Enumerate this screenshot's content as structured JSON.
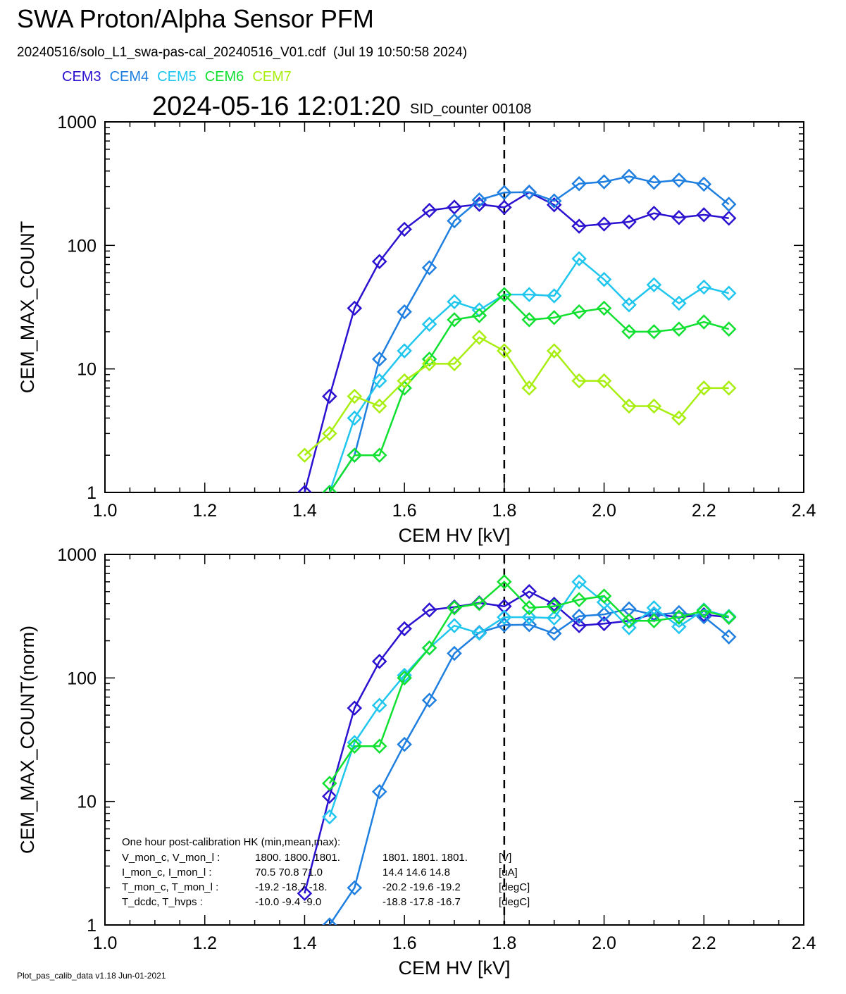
{
  "header": {
    "title": "SWA Proton/Alpha Sensor PFM",
    "subtitle": "20240516/solo_L1_swa-pas-cal_20240516_V01.cdf  (Jul 19 10:50:58 2024)",
    "timestamp": "2024-05-16 12:01:20",
    "sid_counter": "SID_counter 00108"
  },
  "footer": "Plot_pas_calib_data v1.18 Jun-01-2021",
  "hk_table": {
    "title": "One hour post-calibration HK (min,mean,max):",
    "rows": [
      {
        "label": "V_mon_c, V_mon_l :",
        "vals_c": "1800.  1800.  1801.",
        "vals_l": "1801.  1801.  1801.",
        "unit": "[V]"
      },
      {
        "label": "I_mon_c,  I_mon_l :",
        "vals_c": "70.5   70.8   71.0",
        "vals_l": "14.4   14.6   14.8",
        "unit": "[uA]"
      },
      {
        "label": "T_mon_c, T_mon_l :",
        "vals_c": "-19.2  -18.7  -18.",
        "vals_l": "-20.2  -19.6  -19.2",
        "unit": "[degC]"
      },
      {
        "label": "T_dcdc,    T_hvps :",
        "vals_c": "-10.0   -9.4   -9.0",
        "vals_l": "-18.8  -17.8  -16.7",
        "unit": "[degC]"
      }
    ]
  },
  "chart_data": [
    {
      "type": "line",
      "ylabel": "CEM_MAX_COUNT",
      "xlabel": "CEM HV [kV]",
      "xlim": [
        1.0,
        2.4
      ],
      "ylim": [
        1,
        1000
      ],
      "yscale": "log",
      "xticks": [
        "1.0",
        "1.2",
        "1.4",
        "1.6",
        "1.8",
        "2.0",
        "2.2",
        "2.4"
      ],
      "yticks": [
        "1",
        "10",
        "100",
        "1000"
      ],
      "vline": 1.8,
      "series": [
        {
          "name": "CEM3",
          "color": "#2b12d0",
          "x": [
            1.4,
            1.45,
            1.5,
            1.55,
            1.6,
            1.65,
            1.7,
            1.75,
            1.8,
            1.85,
            1.9,
            1.95,
            2.0,
            2.05,
            2.1,
            2.15,
            2.2,
            2.25
          ],
          "values": [
            1,
            6,
            31,
            74,
            135,
            192,
            204,
            215,
            203,
            269,
            213,
            143,
            149,
            155,
            182,
            168,
            177,
            166
          ]
        },
        {
          "name": "CEM4",
          "color": "#1e7fe0",
          "x": [
            1.45,
            1.5,
            1.55,
            1.6,
            1.65,
            1.7,
            1.75,
            1.8,
            1.85,
            1.9,
            1.95,
            2.0,
            2.05,
            2.1,
            2.15,
            2.2,
            2.25
          ],
          "values": [
            1,
            2,
            12,
            29,
            66,
            158,
            233,
            268,
            270,
            229,
            316,
            327,
            362,
            324,
            338,
            313,
            215
          ]
        },
        {
          "name": "CEM5",
          "color": "#20c6ee",
          "x": [
            1.45,
            1.5,
            1.55,
            1.6,
            1.65,
            1.7,
            1.75,
            1.8,
            1.85,
            1.9,
            1.95,
            2.0,
            2.05,
            2.1,
            2.15,
            2.2,
            2.25
          ],
          "values": [
            1,
            4,
            8,
            14,
            23,
            35,
            30,
            40,
            40,
            39,
            78,
            53,
            33,
            48,
            34,
            46,
            41
          ]
        },
        {
          "name": "CEM6",
          "color": "#10e030",
          "x": [
            1.45,
            1.5,
            1.55,
            1.6,
            1.65,
            1.7,
            1.75,
            1.8,
            1.85,
            1.9,
            1.95,
            2.0,
            2.05,
            2.1,
            2.15,
            2.2,
            2.25
          ],
          "values": [
            1,
            2,
            2,
            7,
            12,
            25,
            27,
            40,
            25,
            26,
            29,
            31,
            20,
            20,
            21,
            24,
            21
          ]
        },
        {
          "name": "CEM7",
          "color": "#a8ee10",
          "x": [
            1.4,
            1.45,
            1.5,
            1.55,
            1.6,
            1.65,
            1.7,
            1.75,
            1.8,
            1.85,
            1.9,
            1.95,
            2.0,
            2.05,
            2.1,
            2.15,
            2.2,
            2.25
          ],
          "values": [
            2,
            3,
            6,
            5,
            8,
            11,
            11,
            18,
            14,
            7,
            14,
            8,
            8,
            5,
            5,
            4,
            7,
            7
          ]
        }
      ]
    },
    {
      "type": "line",
      "ylabel": "CEM_MAX_COUNT(norm)",
      "xlabel": "CEM HV [kV]",
      "xlim": [
        1.0,
        2.4
      ],
      "ylim": [
        1,
        1000
      ],
      "yscale": "log",
      "xticks": [
        "1.0",
        "1.2",
        "1.4",
        "1.6",
        "1.8",
        "2.0",
        "2.2",
        "2.4"
      ],
      "yticks": [
        "1",
        "10",
        "100",
        "1000"
      ],
      "vline": 1.8,
      "series": [
        {
          "name": "CEM3",
          "color": "#2b12d0",
          "x": [
            1.4,
            1.45,
            1.5,
            1.55,
            1.6,
            1.65,
            1.7,
            1.75,
            1.8,
            1.85,
            1.9,
            1.95,
            2.0,
            2.05,
            2.1,
            2.15,
            2.2,
            2.25
          ],
          "values": [
            1.8,
            11,
            57,
            136,
            250,
            355,
            375,
            405,
            380,
            500,
            395,
            265,
            275,
            290,
            330,
            310,
            325,
            310
          ]
        },
        {
          "name": "CEM4",
          "color": "#1e7fe0",
          "x": [
            1.45,
            1.5,
            1.55,
            1.6,
            1.65,
            1.7,
            1.75,
            1.8,
            1.85,
            1.9,
            1.95,
            2.0,
            2.05,
            2.1,
            2.15,
            2.2,
            2.25
          ],
          "values": [
            1,
            2,
            12,
            29,
            66,
            158,
            233,
            268,
            270,
            229,
            316,
            327,
            362,
            324,
            338,
            313,
            215
          ]
        },
        {
          "name": "CEM5",
          "color": "#20c6ee",
          "x": [
            1.45,
            1.5,
            1.55,
            1.6,
            1.65,
            1.7,
            1.75,
            1.8,
            1.85,
            1.9,
            1.95,
            2.0,
            2.05,
            2.1,
            2.15,
            2.2,
            2.25
          ],
          "values": [
            7.5,
            30,
            60,
            105,
            175,
            265,
            230,
            310,
            310,
            305,
            600,
            410,
            255,
            370,
            260,
            355,
            315
          ]
        },
        {
          "name": "CEM6",
          "color": "#10e030",
          "x": [
            1.45,
            1.5,
            1.55,
            1.6,
            1.65,
            1.7,
            1.75,
            1.8,
            1.85,
            1.9,
            1.95,
            2.0,
            2.05,
            2.1,
            2.15,
            2.2,
            2.25
          ],
          "values": [
            14,
            28,
            28,
            100,
            175,
            370,
            400,
            600,
            370,
            380,
            430,
            460,
            290,
            290,
            310,
            350,
            310
          ]
        }
      ]
    }
  ]
}
